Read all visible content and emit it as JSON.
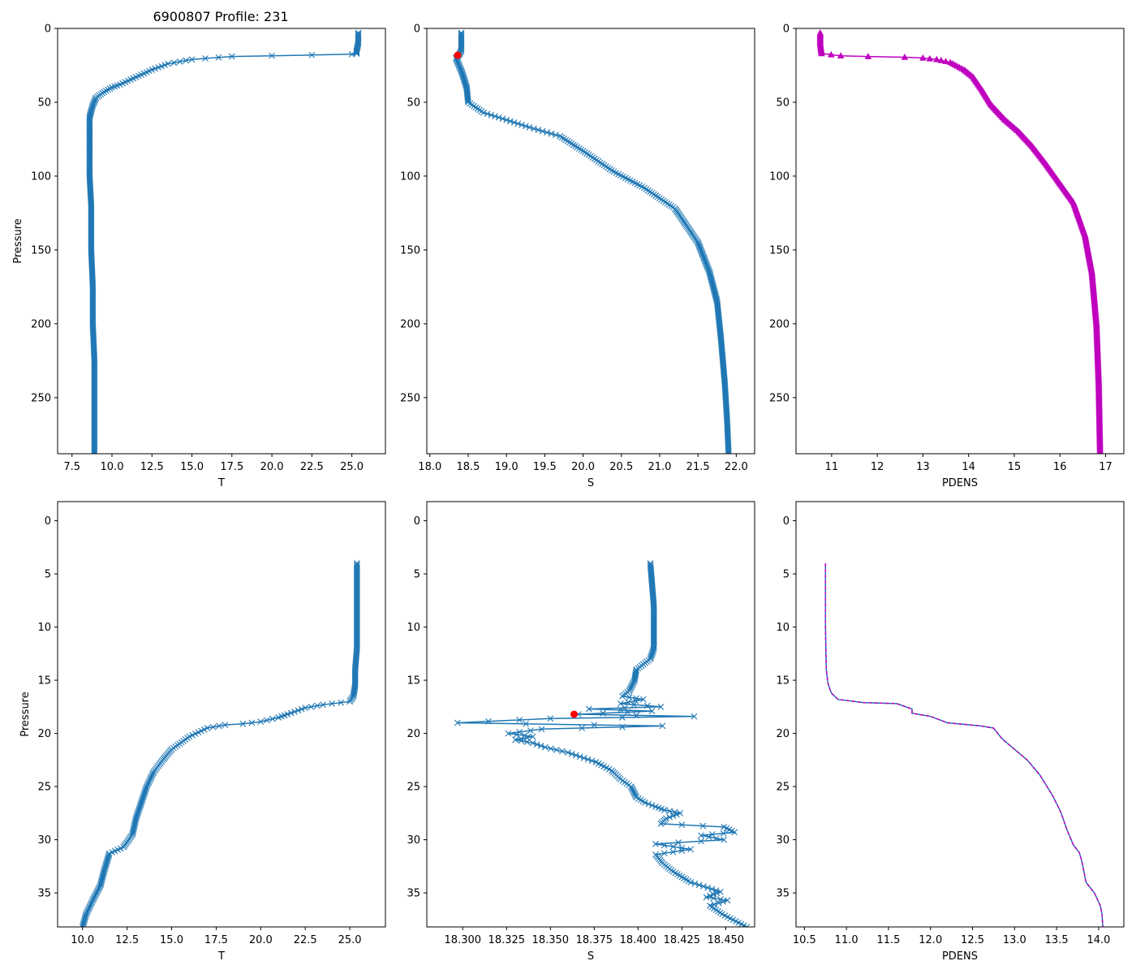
{
  "title": "6900807 Profile: 231",
  "colors": {
    "series": "#1f77b4",
    "pdens": "#bf00bf",
    "marker": "#ff0000",
    "axis": "#000000"
  },
  "chart_data": [
    {
      "id": "top-T",
      "type": "line",
      "xlabel": "T",
      "ylabel": "Pressure",
      "marker": "x",
      "xlim": [
        6.6,
        27.1
      ],
      "ylim": [
        288,
        0
      ],
      "xticks": [
        "7.5",
        "10.0",
        "12.5",
        "15.0",
        "17.5",
        "20.0",
        "22.5",
        "25.0"
      ],
      "yticks": [
        "0",
        "50",
        "100",
        "150",
        "200",
        "250"
      ],
      "series": [
        {
          "name": "T",
          "x": [
            25.4,
            25.4,
            25.3,
            25.3,
            25.0,
            22.5,
            20.0,
            17.5,
            15.0,
            13.5,
            12.5,
            11.5,
            10.5,
            10.0,
            9.5,
            9.0,
            8.8,
            8.6,
            8.6,
            8.6,
            8.7,
            8.7,
            8.8,
            8.8,
            8.9,
            8.9,
            8.9,
            8.9
          ],
          "y": [
            3,
            10,
            15,
            17,
            17.5,
            18,
            18.5,
            19,
            21,
            24,
            28,
            33,
            38,
            40,
            43,
            47,
            52,
            60,
            80,
            100,
            120,
            150,
            175,
            200,
            225,
            250,
            275,
            288
          ]
        }
      ]
    },
    {
      "id": "top-S",
      "type": "line",
      "xlabel": "S",
      "ylabel": "",
      "marker": "x",
      "xlim": [
        17.96,
        22.24
      ],
      "ylim": [
        288,
        0
      ],
      "xticks": [
        "18.0",
        "18.5",
        "19.0",
        "19.5",
        "20.0",
        "20.5",
        "21.0",
        "21.5",
        "22.0"
      ],
      "yticks": [
        "0",
        "50",
        "100",
        "150",
        "200",
        "250"
      ],
      "series": [
        {
          "name": "S",
          "x": [
            18.41,
            18.41,
            18.41,
            18.38,
            18.34,
            18.42,
            18.48,
            18.5,
            18.7,
            19.0,
            19.3,
            19.7,
            20.0,
            20.4,
            20.8,
            21.2,
            21.5,
            21.65,
            21.75,
            21.8,
            21.85,
            21.88,
            21.9
          ],
          "y": [
            3,
            10,
            15,
            18,
            20,
            30,
            40,
            50,
            57,
            62,
            67,
            73,
            83,
            97,
            108,
            122,
            145,
            165,
            185,
            210,
            240,
            265,
            288
          ]
        }
      ],
      "highlight": {
        "x": 18.363,
        "y": 18.2
      }
    },
    {
      "id": "top-PDENS",
      "type": "line",
      "xlabel": "PDENS",
      "ylabel": "",
      "marker": "triangle",
      "xlim": [
        10.22,
        17.4
      ],
      "ylim": [
        288,
        0
      ],
      "xticks": [
        "11",
        "12",
        "13",
        "14",
        "15",
        "16",
        "17"
      ],
      "yticks": [
        "0",
        "50",
        "100",
        "150",
        "200",
        "250"
      ],
      "series": [
        {
          "name": "PDENS",
          "x": [
            10.75,
            10.75,
            10.78,
            11.2,
            11.8,
            12.6,
            13.0,
            13.3,
            13.6,
            13.9,
            14.1,
            14.3,
            14.5,
            14.8,
            15.1,
            15.4,
            15.7,
            16.0,
            16.3,
            16.55,
            16.7,
            16.8,
            16.85,
            16.88
          ],
          "y": [
            3,
            10,
            17,
            18.5,
            19,
            19.5,
            20,
            21,
            23,
            28,
            33,
            42,
            52,
            62,
            70,
            80,
            92,
            105,
            118,
            140,
            165,
            200,
            240,
            288
          ]
        }
      ]
    },
    {
      "id": "bot-T",
      "type": "line",
      "xlabel": "T",
      "ylabel": "Pressure",
      "marker": "x",
      "xlim": [
        8.6,
        27.0
      ],
      "ylim": [
        38.2,
        -1.8
      ],
      "xticks": [
        "10.0",
        "12.5",
        "15.0",
        "17.5",
        "20.0",
        "22.5",
        "25.0"
      ],
      "yticks": [
        "0",
        "5",
        "10",
        "15",
        "20",
        "25",
        "30",
        "35"
      ],
      "series": [
        {
          "name": "T",
          "x": [
            25.4,
            25.4,
            25.4,
            25.3,
            25.3,
            25.2,
            25.0,
            24.5,
            23.5,
            22.5,
            21.5,
            21.0,
            20.0,
            19.0,
            18.0,
            17.0,
            16.0,
            15.0,
            14.5,
            14.0,
            13.6,
            13.3,
            13.0,
            12.8,
            12.3,
            11.5,
            11.2,
            11.0,
            10.6,
            10.2,
            10.0
          ],
          "y": [
            4,
            8,
            12,
            14,
            15.5,
            16.5,
            17,
            17.1,
            17.3,
            17.6,
            18.2,
            18.5,
            18.9,
            19.1,
            19.2,
            19.5,
            20.3,
            21.5,
            22.5,
            23.6,
            25,
            26.5,
            28,
            29.5,
            30.7,
            31.3,
            33,
            34.3,
            35.6,
            37,
            38.2
          ]
        }
      ]
    },
    {
      "id": "bot-S",
      "type": "line",
      "xlabel": "S",
      "ylabel": "",
      "marker": "x",
      "xlim": [
        18.2795,
        18.4665
      ],
      "ylim": [
        38.2,
        -1.8
      ],
      "xticks": [
        "18.300",
        "18.325",
        "18.350",
        "18.375",
        "18.400",
        "18.425",
        "18.450"
      ],
      "yticks": [
        "0",
        "5",
        "10",
        "15",
        "20",
        "25",
        "30",
        "35"
      ],
      "series": [
        {
          "name": "S",
          "x": [
            18.407,
            18.408,
            18.409,
            18.409,
            18.409,
            18.407,
            18.399,
            18.398,
            18.395,
            18.391,
            18.403,
            18.39,
            18.413,
            18.372,
            18.408,
            18.366,
            18.432,
            18.35,
            18.297,
            18.414,
            18.345,
            18.326,
            18.34,
            18.33,
            18.34,
            18.347,
            18.36,
            18.376,
            18.385,
            18.39,
            18.396,
            18.399,
            18.404,
            18.41,
            18.415,
            18.424,
            18.416,
            18.413,
            18.449,
            18.455,
            18.436,
            18.449,
            18.41,
            18.43,
            18.41,
            18.414,
            18.42,
            18.43,
            18.447,
            18.439,
            18.451,
            18.441,
            18.448,
            18.462
          ],
          "y": [
            4,
            6,
            8,
            10,
            12,
            13,
            14,
            15,
            16,
            16.5,
            16.8,
            17.2,
            17.5,
            17.7,
            17.9,
            18.2,
            18.4,
            18.6,
            19,
            19.3,
            19.6,
            20,
            20.3,
            20.6,
            20.9,
            21.3,
            21.8,
            22.7,
            23.5,
            24.3,
            25,
            26,
            26.5,
            26.9,
            27.2,
            27.5,
            28,
            28.5,
            28.8,
            29.3,
            29.6,
            30,
            30.4,
            30.9,
            31.4,
            32.2,
            33,
            34,
            34.9,
            35.4,
            35.7,
            36.2,
            37,
            38.2
          ]
        }
      ],
      "highlight": {
        "x": 18.3635,
        "y": 18.2
      }
    },
    {
      "id": "bot-PDENS",
      "type": "line",
      "xlabel": "PDENS",
      "ylabel": "",
      "marker": "none",
      "dashed": true,
      "xlim": [
        10.4,
        14.3
      ],
      "ylim": [
        38.2,
        -1.8
      ],
      "xticks": [
        "10.5",
        "11.0",
        "11.5",
        "12.0",
        "12.5",
        "13.0",
        "13.5",
        "14.0"
      ],
      "yticks": [
        "0",
        "5",
        "10",
        "15",
        "20",
        "25",
        "30",
        "35"
      ],
      "series": [
        {
          "name": "PDENS",
          "x": [
            10.75,
            10.75,
            10.76,
            10.78,
            10.82,
            10.9,
            11.2,
            11.6,
            11.78,
            11.78,
            11.85,
            12.0,
            12.2,
            12.6,
            12.75,
            12.85,
            13.0,
            13.15,
            13.3,
            13.45,
            13.55,
            13.62,
            13.7,
            13.77,
            13.8,
            13.85,
            13.95,
            14.02,
            14.04,
            14.05
          ],
          "y": [
            4,
            10,
            14,
            15.3,
            16.2,
            16.8,
            17.1,
            17.2,
            17.7,
            18.1,
            18.2,
            18.4,
            19.0,
            19.3,
            19.5,
            20.5,
            21.5,
            22.5,
            23.9,
            25.8,
            27.4,
            29.0,
            30.5,
            31.2,
            32.0,
            34.0,
            35.0,
            36.2,
            37.0,
            38.2
          ]
        }
      ]
    }
  ]
}
